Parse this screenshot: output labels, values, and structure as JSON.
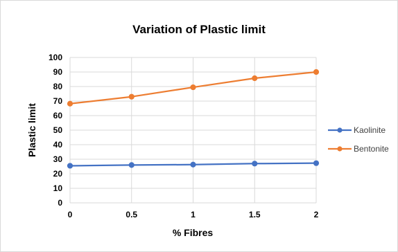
{
  "chart_data": {
    "type": "line",
    "title": "Variation of Plastic limit",
    "xlabel": "% Fibres",
    "ylabel": "Plastic limit",
    "x": [
      0,
      0.5,
      1,
      1.5,
      2
    ],
    "x_tick_labels": [
      "0",
      "0.5",
      "1",
      "1.5",
      "2"
    ],
    "y_tick_labels": [
      "0",
      "10",
      "20",
      "30",
      "40",
      "50",
      "60",
      "70",
      "80",
      "90",
      "100"
    ],
    "ylim": [
      0,
      100
    ],
    "grid": true,
    "legend_position": "right",
    "series": [
      {
        "name": "Kaolinite",
        "color": "#4472c4",
        "values": [
          25.5,
          26,
          26.3,
          27,
          27.3
        ]
      },
      {
        "name": "Bentonite",
        "color": "#ed7d31",
        "values": [
          68.2,
          73,
          79.5,
          85.7,
          90
        ]
      }
    ]
  }
}
